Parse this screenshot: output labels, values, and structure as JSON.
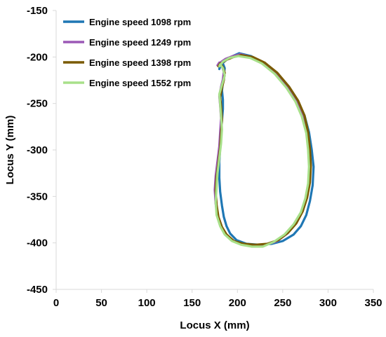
{
  "chart_data": {
    "type": "line",
    "xlabel": "Locus X (mm)",
    "ylabel": "Locus Y (mm)",
    "xlim": [
      0,
      350
    ],
    "ylim": [
      -450,
      -150
    ],
    "xticks": [
      0,
      50,
      100,
      150,
      200,
      250,
      300,
      350
    ],
    "yticks": [
      -150,
      -200,
      -250,
      -300,
      -350,
      -400,
      -450
    ],
    "grid": false,
    "legend_position": "top-left",
    "series": [
      {
        "name": "Engine speed 1098 rpm",
        "color": "#1f77b4",
        "x": [
          202,
          215,
          228,
          242,
          256,
          266,
          274,
          279,
          282,
          284,
          283,
          280,
          276,
          270,
          262,
          250,
          238,
          224,
          210,
          199,
          192,
          188,
          185,
          183,
          181,
          180,
          180,
          181,
          182,
          183,
          184,
          184,
          183,
          184,
          185,
          186,
          184,
          181,
          180,
          182,
          188,
          195,
          202
        ],
        "y": [
          -196,
          -199,
          -206,
          -217,
          -232,
          -247,
          -263,
          -281,
          -300,
          -318,
          -338,
          -355,
          -370,
          -382,
          -391,
          -398,
          -401,
          -402,
          -401,
          -397,
          -390,
          -382,
          -372,
          -360,
          -345,
          -330,
          -313,
          -298,
          -282,
          -268,
          -256,
          -246,
          -236,
          -227,
          -219,
          -212,
          -207,
          -209,
          -213,
          -208,
          -203,
          -199,
          -196
        ]
      },
      {
        "name": "Engine speed 1249 rpm",
        "color": "#9b59b6",
        "x": [
          203,
          216,
          229,
          243,
          256,
          266,
          273,
          277,
          279,
          280,
          279,
          276,
          271,
          264,
          255,
          244,
          232,
          219,
          206,
          195,
          187,
          182,
          178,
          176,
          175,
          176,
          178,
          180,
          181,
          182,
          181,
          180,
          182,
          184,
          185,
          183,
          180,
          178,
          181,
          187,
          195,
          203
        ],
        "y": [
          -197,
          -200,
          -207,
          -218,
          -233,
          -248,
          -264,
          -282,
          -300,
          -318,
          -336,
          -352,
          -366,
          -379,
          -390,
          -398,
          -402,
          -403,
          -402,
          -398,
          -391,
          -383,
          -372,
          -358,
          -343,
          -328,
          -312,
          -296,
          -281,
          -266,
          -252,
          -242,
          -232,
          -224,
          -216,
          -210,
          -206,
          -209,
          -206,
          -202,
          -199,
          -197
        ]
      },
      {
        "name": "Engine speed 1398 rpm",
        "color": "#7a5a00",
        "x": [
          204,
          217,
          230,
          244,
          257,
          267,
          274,
          278,
          280,
          281,
          280,
          277,
          272,
          265,
          256,
          245,
          233,
          220,
          207,
          196,
          188,
          183,
          179,
          177,
          176,
          177,
          179,
          181,
          182,
          183,
          182,
          181,
          183,
          185,
          186,
          184,
          181,
          179,
          182,
          188,
          196,
          204
        ],
        "y": [
          -198,
          -200,
          -206,
          -217,
          -232,
          -247,
          -263,
          -281,
          -299,
          -317,
          -335,
          -351,
          -366,
          -379,
          -389,
          -397,
          -401,
          -402,
          -401,
          -398,
          -391,
          -383,
          -372,
          -359,
          -344,
          -329,
          -313,
          -297,
          -282,
          -267,
          -253,
          -243,
          -233,
          -225,
          -217,
          -211,
          -207,
          -210,
          -207,
          -203,
          -200,
          -198
        ]
      },
      {
        "name": "Engine speed 1552 rpm",
        "color": "#a8e08a",
        "x": [
          201,
          214,
          227,
          241,
          254,
          264,
          271,
          276,
          278,
          279,
          278,
          275,
          270,
          262,
          252,
          240,
          228,
          216,
          204,
          194,
          186,
          181,
          177,
          176,
          177,
          178,
          180,
          182,
          183,
          182,
          181,
          180,
          183,
          186,
          184,
          181,
          180,
          184,
          191,
          201
        ],
        "y": [
          -199,
          -201,
          -207,
          -218,
          -233,
          -248,
          -264,
          -282,
          -300,
          -318,
          -336,
          -352,
          -367,
          -380,
          -391,
          -399,
          -404,
          -404,
          -402,
          -398,
          -391,
          -382,
          -370,
          -356,
          -341,
          -325,
          -309,
          -293,
          -278,
          -264,
          -251,
          -240,
          -230,
          -220,
          -212,
          -208,
          -210,
          -205,
          -201,
          -199
        ]
      }
    ]
  }
}
